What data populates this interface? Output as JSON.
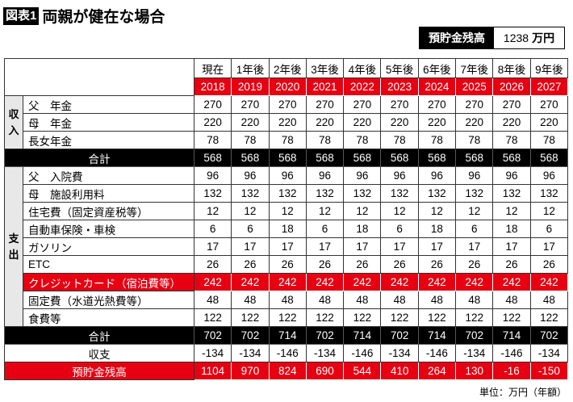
{
  "title": {
    "label": "図表1",
    "text": "両親が健在な場合"
  },
  "balance": {
    "label": "預貯金残高",
    "value": "1238",
    "unit": "万円"
  },
  "columns": {
    "periods": [
      "現在",
      "1年後",
      "2年後",
      "3年後",
      "4年後",
      "5年後",
      "6年後",
      "7年後",
      "8年後",
      "9年後"
    ],
    "years": [
      "2018",
      "2019",
      "2020",
      "2021",
      "2022",
      "2023",
      "2024",
      "2025",
      "2026",
      "2027"
    ]
  },
  "income": {
    "category": "収入",
    "rows": [
      {
        "label": "父　年金",
        "values": [
          "270",
          "270",
          "270",
          "270",
          "270",
          "270",
          "270",
          "270",
          "270",
          "270"
        ]
      },
      {
        "label": "母　年金",
        "values": [
          "220",
          "220",
          "220",
          "220",
          "220",
          "220",
          "220",
          "220",
          "220",
          "220"
        ]
      },
      {
        "label": "長女年金",
        "values": [
          "78",
          "78",
          "78",
          "78",
          "78",
          "78",
          "78",
          "78",
          "78",
          "78"
        ]
      }
    ],
    "total": {
      "label": "合計",
      "values": [
        "568",
        "568",
        "568",
        "568",
        "568",
        "568",
        "568",
        "568",
        "568",
        "568"
      ]
    }
  },
  "expense": {
    "category": "支出",
    "rows": [
      {
        "label": "父　入院費",
        "values": [
          "96",
          "96",
          "96",
          "96",
          "96",
          "96",
          "96",
          "96",
          "96",
          "96"
        ]
      },
      {
        "label": "母　施設利用料",
        "values": [
          "132",
          "132",
          "132",
          "132",
          "132",
          "132",
          "132",
          "132",
          "132",
          "132"
        ]
      },
      {
        "label": "住宅費（固定資産税等）",
        "values": [
          "12",
          "12",
          "12",
          "12",
          "12",
          "12",
          "12",
          "12",
          "12",
          "12"
        ]
      },
      {
        "label": "自動車保険・車検",
        "values": [
          "6",
          "6",
          "18",
          "6",
          "18",
          "6",
          "18",
          "6",
          "18",
          "6"
        ]
      },
      {
        "label": "ガソリン",
        "values": [
          "17",
          "17",
          "17",
          "17",
          "17",
          "17",
          "17",
          "17",
          "17",
          "17"
        ]
      },
      {
        "label": "ETC",
        "values": [
          "26",
          "26",
          "26",
          "26",
          "26",
          "26",
          "26",
          "26",
          "26",
          "26"
        ]
      },
      {
        "label": "クレジットカード（宿泊費等）",
        "values": [
          "242",
          "242",
          "242",
          "242",
          "242",
          "242",
          "242",
          "242",
          "242",
          "242"
        ],
        "highlight": true
      },
      {
        "label": "固定費（水道光熱費等）",
        "values": [
          "48",
          "48",
          "48",
          "48",
          "48",
          "48",
          "48",
          "48",
          "48",
          "48"
        ]
      },
      {
        "label": "食費等",
        "values": [
          "122",
          "122",
          "122",
          "122",
          "122",
          "122",
          "122",
          "122",
          "122",
          "122"
        ]
      }
    ],
    "total": {
      "label": "合計",
      "values": [
        "702",
        "702",
        "714",
        "702",
        "714",
        "702",
        "714",
        "702",
        "714",
        "702"
      ]
    }
  },
  "net": {
    "label": "収支",
    "values": [
      "-134",
      "-134",
      "-146",
      "-134",
      "-146",
      "-134",
      "-146",
      "-134",
      "-146",
      "-134"
    ]
  },
  "savings": {
    "label": "預貯金残高",
    "values": [
      "1104",
      "970",
      "824",
      "690",
      "544",
      "410",
      "264",
      "130",
      "-16",
      "-150"
    ]
  },
  "unit_note": "単位：万円（年額）",
  "colors": {
    "accent_red": "#e60012",
    "black": "#000000"
  }
}
